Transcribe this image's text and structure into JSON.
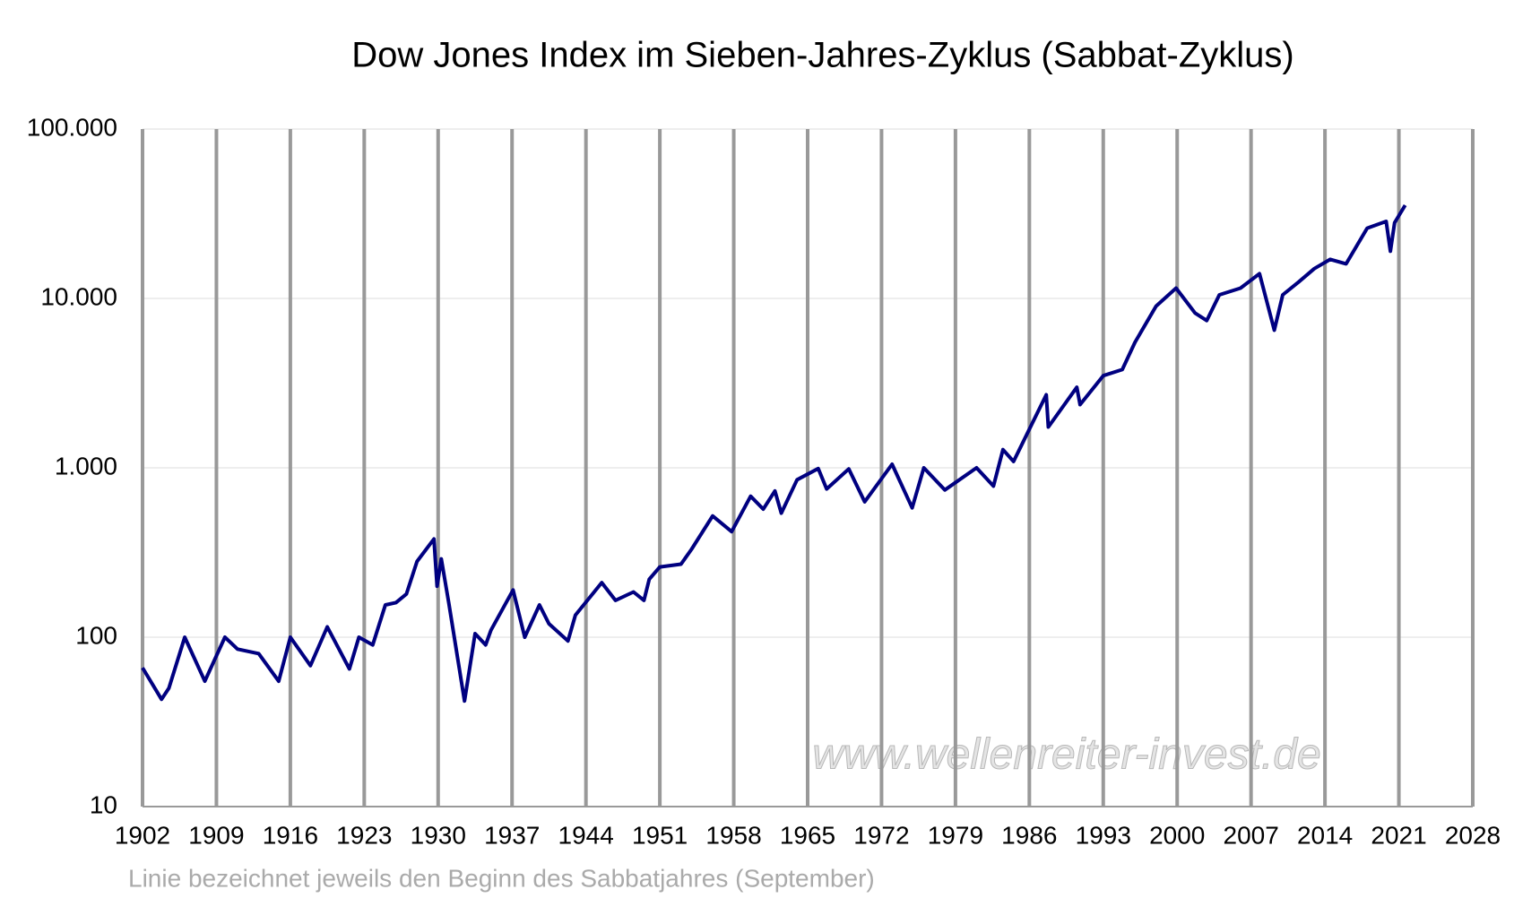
{
  "chart_data": {
    "type": "line",
    "title": "Dow Jones Index im Sieben-Jahres-Zyklus (Sabbat-Zyklus)",
    "annotations": [
      "www.wellenreiter-invest.de",
      "Linie bezeichnet jeweils den Beginn des Sabbatjahres (September)"
    ],
    "x": [
      1902,
      1903.8,
      1904.5,
      1906,
      1907.9,
      1909.8,
      1911,
      1913,
      1914.9,
      1916,
      1917.9,
      1919.5,
      1921.6,
      1922.5,
      1923.8,
      1925,
      1926,
      1927,
      1928,
      1929.6,
      1929.9,
      1930.3,
      1931,
      1932.5,
      1933.5,
      1934.5,
      1935,
      1937.1,
      1938.2,
      1939.6,
      1940.5,
      1942.3,
      1943,
      1945.5,
      1946.8,
      1948.5,
      1949.5,
      1950,
      1951,
      1953,
      1954,
      1956,
      1957.8,
      1959.6,
      1960.8,
      1961.9,
      1962.5,
      1964,
      1966,
      1966.8,
      1968.9,
      1970.4,
      1973,
      1974.9,
      1976,
      1978,
      1981,
      1982.6,
      1983.5,
      1984.5,
      1987.6,
      1987.8,
      1990.5,
      1990.8,
      1993,
      1994.8,
      1996,
      1998,
      1999.9,
      2001.7,
      2002.8,
      2004,
      2006,
      2007.8,
      2009.2,
      2010,
      2011.5,
      2013,
      2014.5,
      2016,
      2018,
      2019.8,
      2020.2,
      2020.6,
      2021.6
    ],
    "values": [
      66,
      43,
      50,
      100,
      55,
      100,
      85,
      80,
      55,
      100,
      68,
      115,
      65,
      100,
      90,
      155,
      160,
      180,
      280,
      380,
      200,
      290,
      160,
      42,
      105,
      90,
      110,
      190,
      100,
      155,
      120,
      95,
      135,
      210,
      165,
      185,
      165,
      220,
      260,
      270,
      330,
      520,
      420,
      680,
      570,
      730,
      540,
      850,
      990,
      750,
      985,
      630,
      1050,
      580,
      1000,
      740,
      1000,
      780,
      1280,
      1090,
      2700,
      1740,
      2990,
      2360,
      3500,
      3800,
      5500,
      9000,
      11500,
      8200,
      7400,
      10500,
      11500,
      14000,
      6500,
      10500,
      12500,
      15000,
      17000,
      16000,
      26000,
      28500,
      19000,
      28000,
      35500
    ],
    "color": "#000080",
    "xlim": [
      1902,
      2028
    ],
    "xticks": [
      1902,
      1909,
      1916,
      1923,
      1930,
      1937,
      1944,
      1951,
      1958,
      1965,
      1972,
      1979,
      1986,
      1993,
      2000,
      2007,
      2014,
      2021,
      2028
    ],
    "ylim": [
      10,
      100000
    ],
    "yticks": [
      10,
      100,
      {
        "value": 1000,
        "label": "1.000"
      },
      {
        "value": 10000,
        "label": "10.000"
      },
      {
        "value": 100000,
        "label": "100.000"
      }
    ],
    "ylog": true,
    "grid": true
  }
}
